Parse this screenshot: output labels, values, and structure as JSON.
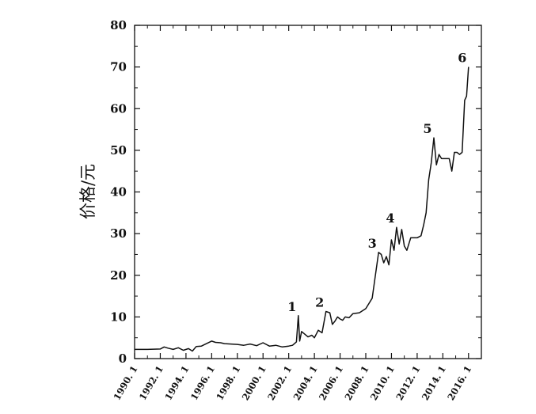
{
  "chart_data": {
    "type": "line",
    "ylabel": "价格/元",
    "ylim": [
      0,
      80
    ],
    "y_ticks": [
      0,
      10,
      20,
      30,
      40,
      50,
      60,
      70,
      80
    ],
    "x_ticks": [
      "1990. 1",
      "1992. 1",
      "1994. 1",
      "1996. 1",
      "1998. 1",
      "2000. 1",
      "2002. 1",
      "2004. 1",
      "2006. 1",
      "2008. 1",
      "2010. 1",
      "2012. 1",
      "2014. 1",
      "2016. 1"
    ],
    "xlim": [
      1990.0,
      2017.0
    ],
    "grid": false,
    "series": [
      {
        "x": [
          1990.0,
          1991.0,
          1992.0,
          1992.3,
          1992.6,
          1993.0,
          1993.4,
          1993.8,
          1994.2,
          1994.5,
          1994.8,
          1995.2,
          1995.6,
          1996.0,
          1996.3,
          1996.7,
          1997.0,
          1997.5,
          1998.0,
          1998.5,
          1999.0,
          1999.5,
          2000.0,
          2000.5,
          2001.0,
          2001.5,
          2002.0,
          2002.3,
          2002.6,
          2002.75,
          2002.85,
          2003.0,
          2003.2,
          2003.5,
          2003.8,
          2004.0,
          2004.3,
          2004.6,
          2004.9,
          2005.2,
          2005.4,
          2005.6,
          2005.8,
          2006.0,
          2006.2,
          2006.4,
          2006.7,
          2007.0,
          2007.5,
          2008.0,
          2008.5,
          2009.0,
          2009.2,
          2009.4,
          2009.6,
          2009.8,
          2010.0,
          2010.2,
          2010.4,
          2010.6,
          2010.8,
          2011.0,
          2011.2,
          2011.5,
          2012.0,
          2012.3,
          2012.5,
          2012.7,
          2012.9,
          2013.1,
          2013.3,
          2013.5,
          2013.7,
          2013.9,
          2014.2,
          2014.5,
          2014.7,
          2014.9,
          2015.1,
          2015.3,
          2015.5,
          2015.7,
          2015.85,
          2016.0
        ],
        "values": [
          2.2,
          2.2,
          2.3,
          2.8,
          2.5,
          2.2,
          2.6,
          2.0,
          2.4,
          1.8,
          2.9,
          3.0,
          3.6,
          4.2,
          3.9,
          3.8,
          3.6,
          3.5,
          3.4,
          3.2,
          3.5,
          3.1,
          3.8,
          3.0,
          3.2,
          2.8,
          3.0,
          3.2,
          4.0,
          10.3,
          4.2,
          6.5,
          6.0,
          5.2,
          5.6,
          5.0,
          6.8,
          6.2,
          11.3,
          11.0,
          8.2,
          9.0,
          10.0,
          9.5,
          9.2,
          10.0,
          9.8,
          10.8,
          11.0,
          12.0,
          14.5,
          25.5,
          25.0,
          23.0,
          24.5,
          22.5,
          28.5,
          26.0,
          31.5,
          27.5,
          31.0,
          27.0,
          26.0,
          29.0,
          29.0,
          29.5,
          32.0,
          35.0,
          43.0,
          47.0,
          53.0,
          46.5,
          49.0,
          48.0,
          48.0,
          48.0,
          45.0,
          49.5,
          49.5,
          49.0,
          49.5,
          62.0,
          63.0,
          70.0
        ]
      }
    ],
    "annotations": [
      {
        "text": "1",
        "x": 2002.75,
        "y": 10.3
      },
      {
        "text": "2",
        "x": 2004.9,
        "y": 11.3
      },
      {
        "text": "3",
        "x": 2009.0,
        "y": 25.5
      },
      {
        "text": "4",
        "x": 2010.4,
        "y": 31.5
      },
      {
        "text": "5",
        "x": 2013.3,
        "y": 53.0
      },
      {
        "text": "6",
        "x": 2016.0,
        "y": 70.0
      }
    ],
    "colors": {
      "line": "#111111",
      "axis": "#111111"
    }
  }
}
